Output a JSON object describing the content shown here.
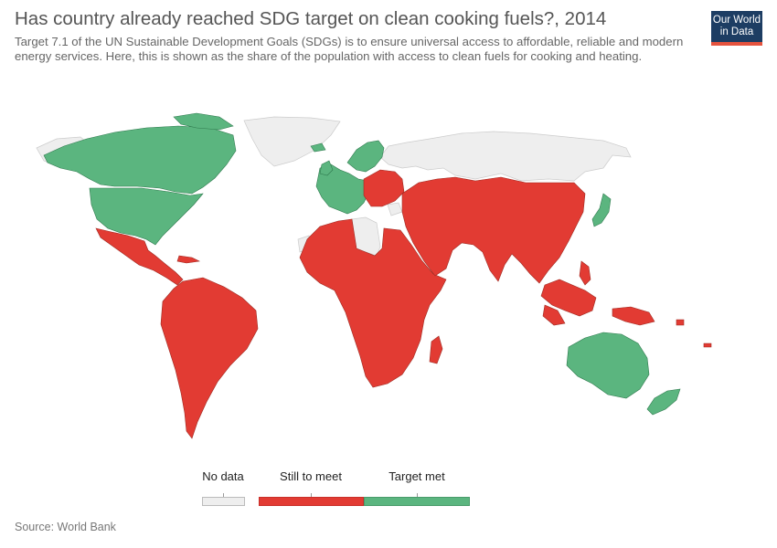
{
  "title": "Has country already reached SDG target on clean cooking fuels?, 2014",
  "subtitle": "Target 7.1 of the UN Sustainable Development Goals (SDGs) is to ensure universal access to affordable, reliable and modern energy services. Here, this is shown as the share of the population with access to clean fuels for cooking and heating.",
  "logo": {
    "line1": "Our World",
    "line2": "in Data"
  },
  "legend": {
    "no_data": {
      "label": "No data",
      "color": "#eeeeee"
    },
    "still_to_meet": {
      "label": "Still to meet",
      "color": "#e23b33"
    },
    "target_met": {
      "label": "Target met",
      "color": "#5bb57f"
    }
  },
  "source": "Source: World Bank",
  "colors": {
    "land_border": "#b03a30",
    "no_data_border": "#cccccc",
    "text": "#555555"
  }
}
